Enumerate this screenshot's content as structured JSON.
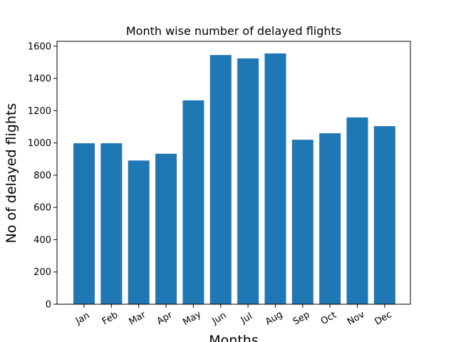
{
  "chart_data": {
    "type": "bar",
    "title": "Month wise number of delayed flights",
    "xlabel": "Months",
    "ylabel": "No of delayed flights",
    "categories": [
      "Jan",
      "Feb",
      "Mar",
      "Apr",
      "May",
      "Jun",
      "Jul",
      "Aug",
      "Sep",
      "Oct",
      "Nov",
      "Dec"
    ],
    "values": [
      998,
      998,
      891,
      933,
      1264,
      1545,
      1524,
      1555,
      1020,
      1060,
      1158,
      1104
    ],
    "ylim": [
      0,
      1630
    ],
    "yticks": [
      0,
      200,
      400,
      600,
      800,
      1000,
      1200,
      1400,
      1600
    ],
    "bar_color": "#1f77b4",
    "grid": false,
    "xtick_rotation": "rotated"
  }
}
